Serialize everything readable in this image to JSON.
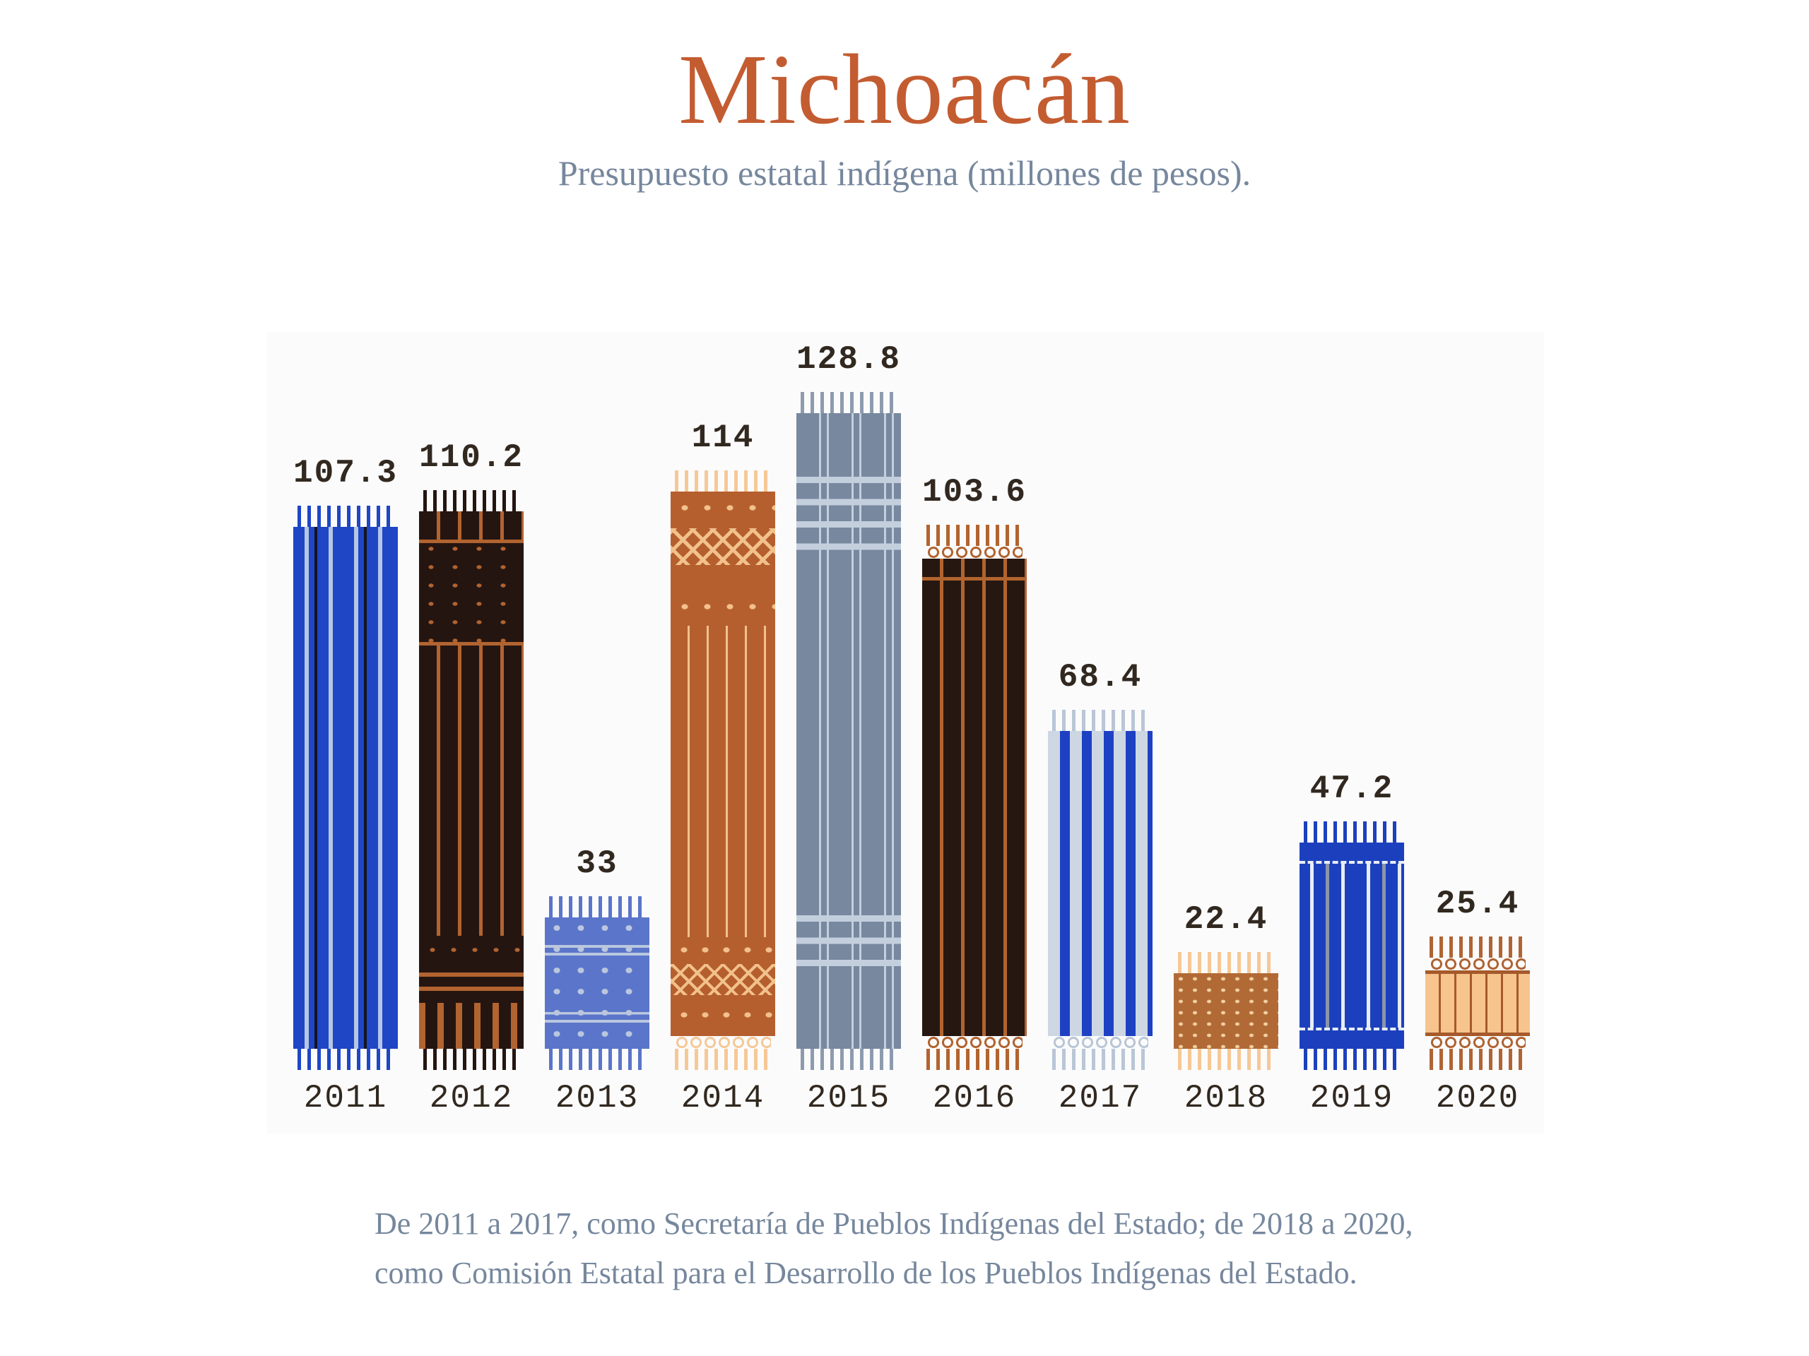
{
  "page": {
    "title": "Michoacán",
    "subtitle": "Presupuesto estatal indígena (millones de pesos).",
    "footer": {
      "line1": "De 2011 a 2017, como Secretaría de Pueblos Indígenas del Estado; de 2018 a 2020,",
      "line2": "como Comisión Estatal para el Desarrollo de los Pueblos Indígenas del Estado."
    },
    "colors": {
      "title": "#c45c31",
      "muted_text": "#76879d",
      "label_ink": "#31281f",
      "panel_bg": "#fbfbfc"
    }
  },
  "chart_data": {
    "type": "bar",
    "title": "Michoacán",
    "subtitle": "Presupuesto estatal indígena (millones de pesos).",
    "unit": "millones de pesos",
    "categories": [
      "2011",
      "2012",
      "2013",
      "2014",
      "2015",
      "2016",
      "2017",
      "2018",
      "2019",
      "2020"
    ],
    "values": [
      107.3,
      110.2,
      33,
      114,
      128.8,
      103.6,
      68.4,
      22.4,
      47.2,
      25.4
    ],
    "value_labels": [
      "107.3",
      "110.2",
      "33",
      "114",
      "128.8",
      "103.6",
      "68.4",
      "22.4",
      "47.2",
      "25.4"
    ],
    "ylim": [
      0,
      130
    ],
    "grid": false,
    "legend": "none",
    "bar_styles": [
      {
        "pattern": "pinstripe-duo",
        "base": "#1e46c5",
        "s1": "#b6c6e6",
        "s2": "#14141f",
        "fringe": "#1e46c5",
        "fringe_top": "strands",
        "fringe_bottom": "strands"
      },
      {
        "pattern": "rust-stripe-banded",
        "base": "#251511",
        "s1": "#b26430",
        "s2": "#b26430",
        "fringe": "#251511",
        "fringe_top": "strands",
        "fringe_bottom": "strands"
      },
      {
        "pattern": "dotted",
        "base": "#5a75ca",
        "s1": "#bac7dd",
        "s2": "#bac7dd",
        "fringe": "#5a75ca",
        "fringe_top": "strands",
        "fringe_bottom": "strands"
      },
      {
        "pattern": "terracotta-bands",
        "base": "#b65f2e",
        "s1": "#f2c18c",
        "s2": "#f2c18c",
        "fringe": "#f6c896",
        "fringe_top": "strands",
        "fringe_bottom": "netted"
      },
      {
        "pattern": "slate-stripes",
        "base": "#77889f",
        "s1": "#c4cfdd",
        "s2": "#c4cfdd",
        "fringe": "#8d9bae",
        "fringe_top": "strands",
        "fringe_bottom": "strands"
      },
      {
        "pattern": "rust-stripe",
        "base": "#261710",
        "s1": "#b26430",
        "s2": "#b26430",
        "fringe": "#b26430",
        "fringe_top": "netted",
        "fringe_bottom": "netted"
      },
      {
        "pattern": "bold-blue-stripes",
        "base": "#cdd7e4",
        "s1": "#1e41c4",
        "s2": "#1e41c4",
        "fringe": "#b9c6d6",
        "fringe_top": "strands",
        "fringe_bottom": "netted"
      },
      {
        "pattern": "dot-grid",
        "base": "#b16a36",
        "s1": "#f3d0a2",
        "s2": "#f3d0a2",
        "fringe": "#f6c896",
        "fringe_top": "strands",
        "fringe_bottom": "strands"
      },
      {
        "pattern": "royal-stripes",
        "base": "#1c40bd",
        "s1": "#e9edf6",
        "s2": "#8d96a9",
        "fringe": "#1c40bd",
        "fringe_top": "strands",
        "fringe_bottom": "strands"
      },
      {
        "pattern": "peach-grid",
        "base": "#f7c48e",
        "s1": "#a65a2b",
        "s2": "#a65a2b",
        "fringe": "#b06434",
        "fringe_top": "netted",
        "fringe_bottom": "netted"
      }
    ]
  }
}
